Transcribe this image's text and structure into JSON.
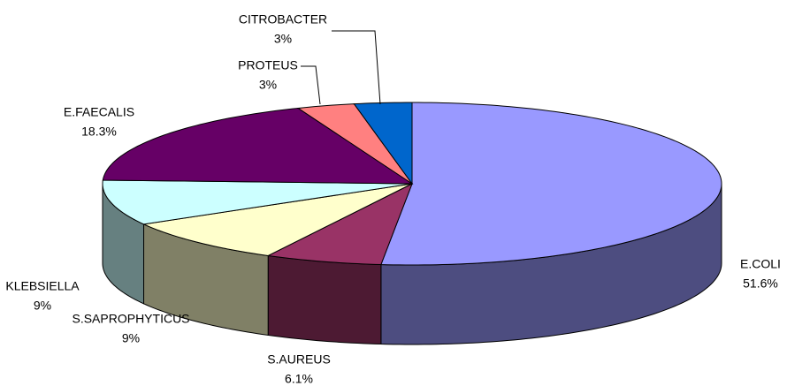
{
  "chart_data": {
    "type": "pie3d",
    "categories": [
      "E.COLI",
      "S.AUREUS",
      "S.SAPROPHYTICUS",
      "KLEBSIELLA",
      "E.FAECALIS",
      "PROTEUS",
      "CITROBACTER"
    ],
    "values": [
      51.6,
      6.1,
      9,
      9,
      18.3,
      3,
      3
    ],
    "value_labels": [
      "51.6%",
      "6.1%",
      "9%",
      "9%",
      "18.3%",
      "3%",
      "3%"
    ],
    "colors": [
      "#9999ff",
      "#993366",
      "#ffffcc",
      "#ccffff",
      "#660066",
      "#ff8080",
      "#0066cc"
    ]
  }
}
